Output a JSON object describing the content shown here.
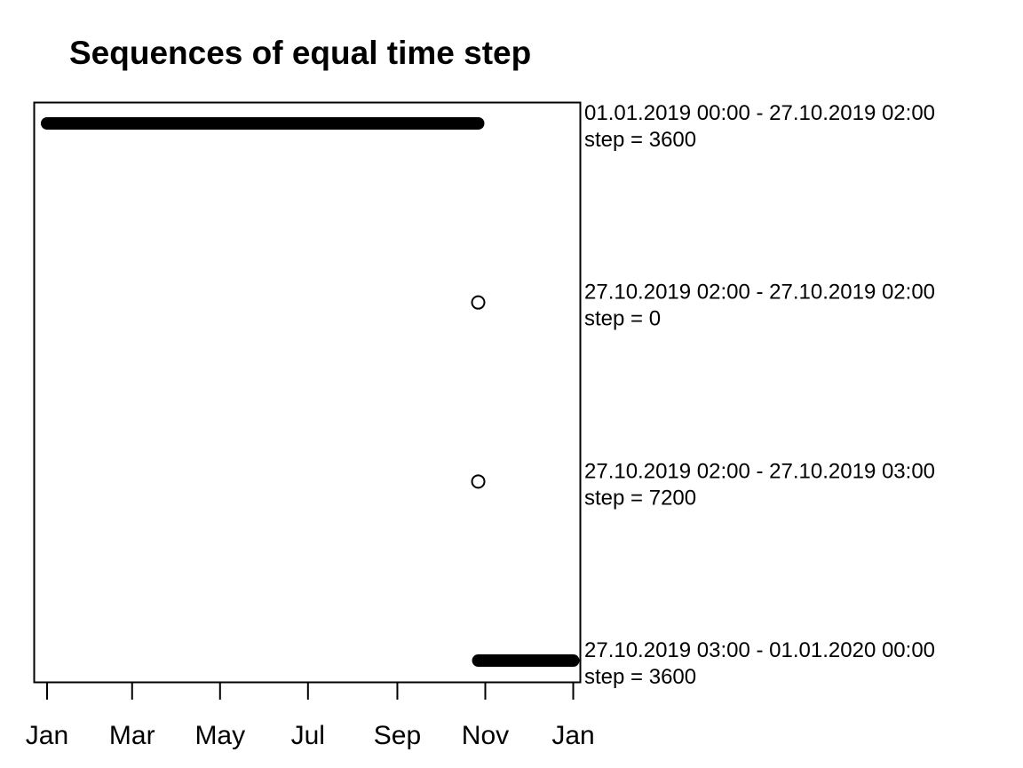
{
  "chart_data": {
    "type": "scatter",
    "title": "Sequences of equal time step",
    "xlabel": "",
    "ylabel": "",
    "x_tick_labels": [
      "Jan",
      "Mar",
      "May",
      "Jul",
      "Sep",
      "Nov",
      "Jan"
    ],
    "x_tick_dates": [
      "2019-01-01",
      "2019-03-01",
      "2019-05-01",
      "2019-07-01",
      "2019-09-01",
      "2019-11-01",
      "2020-01-01"
    ],
    "xlim": [
      "2018-12-24",
      "2020-01-05"
    ],
    "grid": false,
    "segments": [
      {
        "start": "2019-01-01T00:00",
        "end": "2019-10-27T02:00",
        "range_label": "01.01.2019 00:00 - 27.10.2019 02:00",
        "step_label": "step = 3600",
        "step": 3600,
        "marker": "dense"
      },
      {
        "start": "2019-10-27T02:00",
        "end": "2019-10-27T02:00",
        "range_label": "27.10.2019 02:00 - 27.10.2019 02:00",
        "step_label": "step = 0",
        "step": 0,
        "marker": "point"
      },
      {
        "start": "2019-10-27T02:00",
        "end": "2019-10-27T03:00",
        "range_label": "27.10.2019 02:00 - 27.10.2019 03:00",
        "step_label": "step = 7200",
        "step": 7200,
        "marker": "point"
      },
      {
        "start": "2019-10-27T03:00",
        "end": "2020-01-01T00:00",
        "range_label": "27.10.2019 03:00 - 01.01.2020 00:00",
        "step_label": "step = 3600",
        "step": 3600,
        "marker": "dense"
      }
    ]
  }
}
